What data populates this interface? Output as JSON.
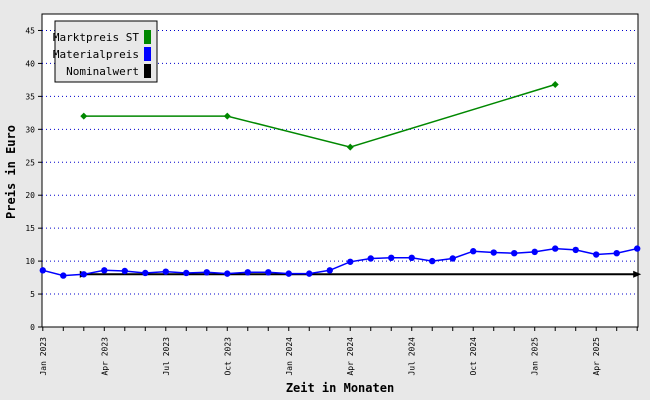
{
  "chart_data": {
    "type": "line",
    "xlabel": "Zeit in Monaten",
    "ylabel": "Preis in Euro",
    "ylim": [
      0,
      47.5
    ],
    "yticks": [
      0,
      5,
      10,
      15,
      20,
      25,
      30,
      35,
      40,
      45
    ],
    "grid": "horizontal dotted",
    "legend_position": "top-left",
    "x_axis": {
      "start_month": "Jan 2023",
      "end_month": "Jun 2025",
      "tick_labels": [
        {
          "month": "2023-01",
          "label": "Jan 2023"
        },
        {
          "month": "2023-04",
          "label": "Apr 2023"
        },
        {
          "month": "2023-07",
          "label": "Jul 2023"
        },
        {
          "month": "2023-10",
          "label": "Oct 2023"
        },
        {
          "month": "2024-01",
          "label": "Jan 2024"
        },
        {
          "month": "2024-04",
          "label": "Apr 2024"
        },
        {
          "month": "2024-07",
          "label": "Jul 2024"
        },
        {
          "month": "2024-10",
          "label": "Oct 2024"
        },
        {
          "month": "2025-01",
          "label": "Jan 2025"
        },
        {
          "month": "2025-04",
          "label": "Apr 2025"
        }
      ]
    },
    "series": [
      {
        "name": "Marktpreis ST",
        "color": "#008800",
        "marker": "diamond",
        "points": [
          {
            "month": "2023-03",
            "value": 32.0
          },
          {
            "month": "2023-10",
            "value": 32.0
          },
          {
            "month": "2024-04",
            "value": 27.3
          },
          {
            "month": "2025-02",
            "value": 36.8
          }
        ]
      },
      {
        "name": "Materialpreis",
        "color": "#0000ff",
        "marker": "circle",
        "points": [
          {
            "month": "2023-01",
            "value": 8.6
          },
          {
            "month": "2023-02",
            "value": 7.8
          },
          {
            "month": "2023-03",
            "value": 8.0
          },
          {
            "month": "2023-04",
            "value": 8.6
          },
          {
            "month": "2023-05",
            "value": 8.5
          },
          {
            "month": "2023-06",
            "value": 8.2
          },
          {
            "month": "2023-07",
            "value": 8.4
          },
          {
            "month": "2023-08",
            "value": 8.2
          },
          {
            "month": "2023-09",
            "value": 8.3
          },
          {
            "month": "2023-10",
            "value": 8.1
          },
          {
            "month": "2023-11",
            "value": 8.3
          },
          {
            "month": "2023-12",
            "value": 8.3
          },
          {
            "month": "2024-01",
            "value": 8.1
          },
          {
            "month": "2024-02",
            "value": 8.1
          },
          {
            "month": "2024-03",
            "value": 8.6
          },
          {
            "month": "2024-04",
            "value": 9.9
          },
          {
            "month": "2024-05",
            "value": 10.4
          },
          {
            "month": "2024-06",
            "value": 10.5
          },
          {
            "month": "2024-07",
            "value": 10.5
          },
          {
            "month": "2024-08",
            "value": 10.0
          },
          {
            "month": "2024-09",
            "value": 10.4
          },
          {
            "month": "2024-10",
            "value": 11.5
          },
          {
            "month": "2024-11",
            "value": 11.3
          },
          {
            "month": "2024-12",
            "value": 11.2
          },
          {
            "month": "2025-01",
            "value": 11.4
          },
          {
            "month": "2025-02",
            "value": 11.9
          },
          {
            "month": "2025-03",
            "value": 11.7
          },
          {
            "month": "2025-04",
            "value": 11.0
          },
          {
            "month": "2025-05",
            "value": 11.2
          },
          {
            "month": "2025-06",
            "value": 11.9
          }
        ]
      },
      {
        "name": "Nominalwert",
        "color": "#000000",
        "marker": "triangle",
        "points": [
          {
            "month": "2023-03",
            "value": 8.0
          },
          {
            "month": "2025-06",
            "value": 8.0
          }
        ]
      }
    ]
  }
}
